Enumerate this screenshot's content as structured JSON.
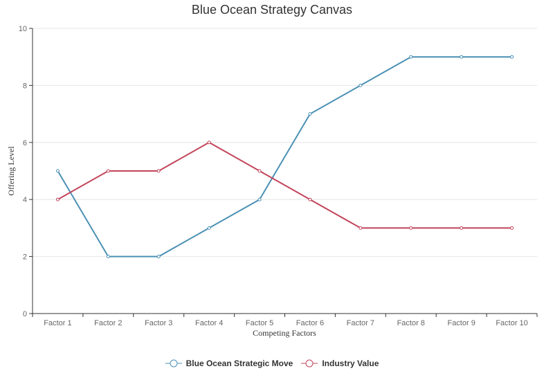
{
  "chart_data": {
    "type": "line",
    "title": "Blue Ocean Strategy Canvas",
    "xlabel": "Competing Factors",
    "ylabel": "Offering Level",
    "categories": [
      "Factor 1",
      "Factor 2",
      "Factor 3",
      "Factor 4",
      "Factor 5",
      "Factor 6",
      "Factor 7",
      "Factor 8",
      "Factor 9",
      "Factor 10"
    ],
    "ylim": [
      0,
      10
    ],
    "yticks": [
      0,
      2,
      4,
      6,
      8,
      10
    ],
    "grid": true,
    "legend_position": "bottom",
    "series": [
      {
        "name": "Blue Ocean Strategic Move",
        "color": "#4a90b5",
        "values": [
          5,
          2,
          2,
          3,
          4,
          7,
          8,
          9,
          9,
          9
        ]
      },
      {
        "name": "Industry Value",
        "color": "#c2445a",
        "values": [
          4,
          5,
          5,
          6,
          5,
          4,
          3,
          3,
          3,
          3
        ]
      }
    ]
  }
}
